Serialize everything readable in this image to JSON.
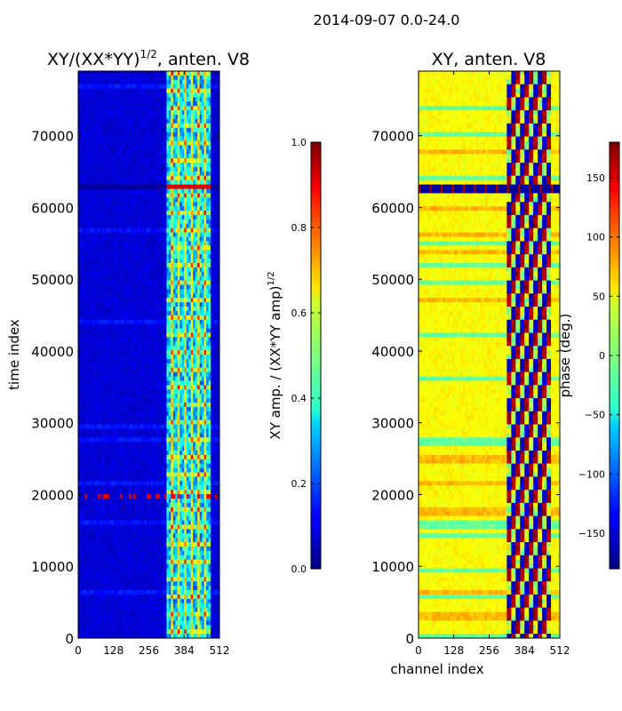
{
  "figure": {
    "suptitle": "2014-09-07 0.0-24.0"
  },
  "chart_data": [
    {
      "type": "heatmap",
      "title": "XY/(XX*YY)",
      "title_superscript": "1/2",
      "title_suffix": ", anten. V8",
      "xlabel": "",
      "ylabel": "time index",
      "xlim": [
        0,
        512
      ],
      "ylim": [
        0,
        79000
      ],
      "xticks": [
        "0",
        "128",
        "256",
        "384",
        "512"
      ],
      "xtick_values": [
        0,
        128,
        256,
        384,
        512
      ],
      "yticks": [
        "0",
        "10000",
        "20000",
        "30000",
        "40000",
        "50000",
        "60000",
        "70000"
      ],
      "ytick_values": [
        0,
        10000,
        20000,
        30000,
        40000,
        50000,
        60000,
        70000
      ],
      "colormap": "jet",
      "colorbar": {
        "label": "XY amp. / (XX*YY amp)",
        "label_superscript": "1/2",
        "range": [
          0.0,
          1.0
        ],
        "ticks": [
          "0.0",
          "0.2",
          "0.4",
          "0.6",
          "0.8",
          "1.0"
        ],
        "tick_values": [
          0.0,
          0.2,
          0.4,
          0.6,
          0.8,
          1.0
        ]
      },
      "features": {
        "background_level": 0.1,
        "bright_channel_range": [
          320,
          480
        ],
        "bright_level": 0.45,
        "flagged_time_index": 63500,
        "noisy_time_index": 20000
      }
    },
    {
      "type": "heatmap",
      "title": "XY, anten. V8",
      "xlabel": "channel index",
      "ylabel": "",
      "xlim": [
        0,
        512
      ],
      "ylim": [
        0,
        79000
      ],
      "xticks": [
        "0",
        "128",
        "256",
        "384",
        "512"
      ],
      "xtick_values": [
        0,
        128,
        256,
        384,
        512
      ],
      "yticks": [
        "0",
        "10000",
        "20000",
        "30000",
        "40000",
        "50000",
        "60000",
        "70000"
      ],
      "ytick_values": [
        0,
        10000,
        20000,
        30000,
        40000,
        50000,
        60000,
        70000
      ],
      "colormap": "jet",
      "colorbar": {
        "label": "phase (deg.)",
        "range": [
          -180,
          180
        ],
        "ticks": [
          "−150",
          "−100",
          "−50",
          "0",
          "50",
          "100",
          "150"
        ],
        "tick_values": [
          -150,
          -100,
          -50,
          0,
          50,
          100,
          150
        ]
      },
      "features": {
        "background_level": 45,
        "striped_channel_range": [
          320,
          480
        ],
        "flagged_time_index": 63500
      }
    }
  ]
}
